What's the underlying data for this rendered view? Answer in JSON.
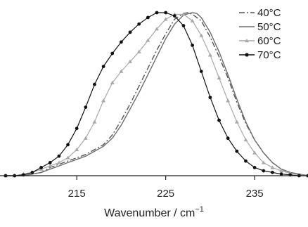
{
  "chart_data": {
    "type": "line",
    "title": "",
    "xlabel": "Wavenumber  / cm",
    "xlabel_sup": "−1",
    "ylabel": "",
    "xlim": [
      207,
      241
    ],
    "ylim": [
      0,
      1
    ],
    "xticks": [
      215,
      225,
      235
    ],
    "xtick_labels": [
      "215",
      "225",
      "235"
    ],
    "grid": false,
    "legend_position": "top-right",
    "series": [
      {
        "name": "40°C",
        "line": "dash-dot",
        "color": "#555555",
        "marker": "none",
        "x": [
          207,
          209,
          210,
          211,
          212,
          213,
          214,
          215,
          216,
          217,
          218,
          219,
          220,
          221,
          222,
          223,
          224,
          225,
          226,
          227,
          227.5,
          228,
          229,
          230,
          231,
          232,
          233,
          234,
          235,
          236,
          237,
          238,
          239,
          240,
          241
        ],
        "y": [
          0.0,
          0.0,
          0.01,
          0.02,
          0.05,
          0.07,
          0.09,
          0.11,
          0.13,
          0.16,
          0.19,
          0.25,
          0.34,
          0.44,
          0.55,
          0.66,
          0.77,
          0.87,
          0.96,
          0.995,
          1.0,
          0.99,
          0.95,
          0.85,
          0.73,
          0.6,
          0.45,
          0.32,
          0.22,
          0.14,
          0.08,
          0.04,
          0.02,
          0.01,
          0.0
        ]
      },
      {
        "name": "50°C",
        "line": "solid",
        "color": "#6e6e6e",
        "marker": "none",
        "x": [
          207,
          209,
          210,
          211,
          212,
          213,
          214,
          215,
          216,
          217,
          218,
          219,
          220,
          221,
          222,
          223,
          224,
          225,
          226,
          227,
          228,
          228.5,
          229,
          230,
          231,
          232,
          233,
          234,
          235,
          236,
          237,
          238,
          239,
          240,
          241
        ],
        "y": [
          0.0,
          0.0,
          0.01,
          0.02,
          0.04,
          0.06,
          0.08,
          0.1,
          0.12,
          0.15,
          0.18,
          0.23,
          0.31,
          0.41,
          0.51,
          0.62,
          0.73,
          0.84,
          0.93,
          0.985,
          1.0,
          0.995,
          0.97,
          0.88,
          0.76,
          0.62,
          0.47,
          0.33,
          0.22,
          0.14,
          0.08,
          0.04,
          0.02,
          0.01,
          0.0
        ]
      },
      {
        "name": "60°C",
        "line": "solid",
        "color": "#a8a8a8",
        "marker": "triangle",
        "x": [
          207,
          208,
          209,
          210,
          211,
          212,
          213,
          214,
          215,
          216,
          217,
          218,
          219,
          220,
          221,
          222,
          223,
          224,
          225,
          226,
          227,
          228,
          229,
          230,
          231,
          232,
          233,
          234,
          235,
          236,
          237,
          238,
          239,
          240,
          241
        ],
        "y": [
          0.0,
          0.0,
          0.01,
          0.02,
          0.04,
          0.06,
          0.08,
          0.11,
          0.16,
          0.23,
          0.33,
          0.46,
          0.57,
          0.64,
          0.7,
          0.76,
          0.83,
          0.9,
          0.96,
          0.99,
          0.99,
          0.95,
          0.86,
          0.74,
          0.6,
          0.46,
          0.33,
          0.22,
          0.14,
          0.08,
          0.05,
          0.03,
          0.015,
          0.005,
          0.0
        ]
      },
      {
        "name": "70°C",
        "line": "solid",
        "color": "#111111",
        "marker": "circle",
        "x": [
          207,
          208,
          209,
          210,
          211,
          212,
          213,
          214,
          215,
          216,
          217,
          218,
          219,
          220,
          221,
          222,
          223,
          224,
          225,
          226,
          227,
          228,
          229,
          230,
          231,
          232,
          233,
          234,
          235,
          236,
          237,
          238,
          239,
          240,
          241
        ],
        "y": [
          0.0,
          0.0,
          0.005,
          0.02,
          0.05,
          0.08,
          0.12,
          0.19,
          0.29,
          0.42,
          0.56,
          0.67,
          0.75,
          0.82,
          0.88,
          0.93,
          0.97,
          1.0,
          1.0,
          0.98,
          0.92,
          0.8,
          0.64,
          0.48,
          0.34,
          0.23,
          0.15,
          0.09,
          0.05,
          0.03,
          0.02,
          0.01,
          0.005,
          0.0,
          0.0
        ]
      }
    ]
  }
}
